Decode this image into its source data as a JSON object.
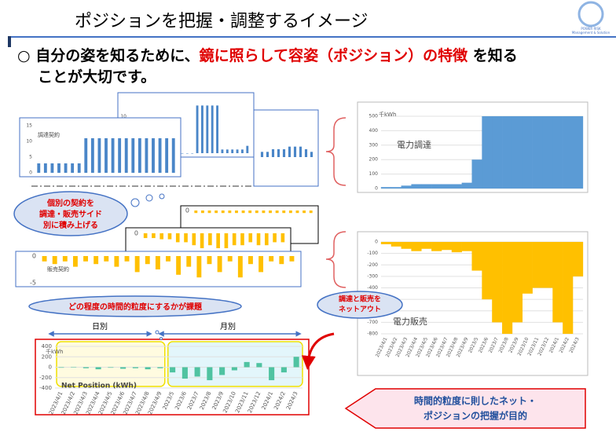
{
  "header": {
    "title": "ポジションを把握・調整するイメージ",
    "logo": [
      "POWER RISK",
      "Management & Solution"
    ]
  },
  "bullet": {
    "mark": "○",
    "text_1": "自分の姿を知るために、",
    "highlight": "鏡に照らして容姿（ポジション）の特徴",
    "text_2": " を知る",
    "text_3": "ことが大切です。"
  },
  "callouts": {
    "stack": [
      "個別の契約を",
      "調達・販売サイド",
      "別に積み上げる"
    ],
    "granularity": "どの程度の時間的粒度にするかが課題",
    "netout": [
      "調達と販売を",
      "ネットアウト"
    ],
    "goal": [
      "時間的粒度に則したネット・",
      "ポジションの把握が目的"
    ]
  },
  "periods": {
    "daily": "日別",
    "monthly": "月別"
  },
  "chart_data": [
    {
      "type": "bar",
      "label": "調達契約",
      "color": "#4a86c8",
      "ylim": [
        0,
        15
      ],
      "yticks": [
        0,
        5,
        10,
        15
      ],
      "values": [
        3,
        3,
        3,
        3,
        3,
        3,
        3,
        11,
        11,
        11,
        11,
        11,
        11,
        11,
        11,
        11,
        11,
        11,
        11,
        11,
        11
      ]
    },
    {
      "type": "bar",
      "color": "#4a86c8",
      "ylim": [
        0,
        15
      ],
      "yticks": [
        10
      ],
      "values": [
        0,
        0,
        0,
        0,
        0,
        0,
        0,
        0,
        0,
        0,
        0,
        0,
        0,
        13,
        13,
        13,
        13,
        13,
        1,
        1,
        1,
        1,
        1,
        2
      ]
    },
    {
      "type": "bar",
      "color": "#4a86c8",
      "ylim": [
        0,
        15
      ],
      "values": [
        2,
        2,
        3,
        3,
        3,
        4,
        4,
        4,
        3,
        2
      ]
    },
    {
      "type": "bar",
      "color": "#ffc000",
      "ylim": [
        -5,
        0
      ],
      "yticks": [
        0
      ],
      "values": [
        -0.5,
        -0.5,
        -0.5,
        -0.5,
        -0.5,
        -0.5,
        -0.5,
        -0.5,
        -0.5,
        -0.5,
        -0.5,
        -0.5,
        -0.5,
        -0.5,
        -0.5,
        -0.5,
        -0.5,
        -0.5
      ]
    },
    {
      "type": "bar",
      "color": "#ffc000",
      "ylim": [
        -5,
        0
      ],
      "yticks": [
        0
      ],
      "values": [
        -0.8,
        -0.8,
        -1,
        -1,
        -1.5,
        -1.5,
        -2,
        -2.5,
        -2,
        -2.5,
        -2.5,
        -2,
        -2,
        -1.5,
        -2,
        -2,
        -1.5,
        -1.5
      ]
    },
    {
      "type": "bar",
      "label": "販売契約",
      "color": "#ffc000",
      "ylim": [
        -5,
        0
      ],
      "yticks": [
        0,
        -5
      ],
      "values": [
        -1,
        -1.5,
        -1,
        -2,
        -1,
        -1.5,
        -1,
        -2,
        -1,
        -3,
        -1.5,
        -2.5,
        -1,
        -3.5,
        -2,
        -4,
        -1.5,
        -3,
        -1,
        -4,
        -1.5,
        -3,
        -1,
        -1.5,
        -1
      ]
    },
    {
      "type": "step",
      "label": "電力調達",
      "unit": "千kWh",
      "color": "#5b9bd5",
      "grid": true,
      "ylim": [
        0,
        500
      ],
      "yticks": [
        0,
        100,
        200,
        300,
        400,
        500
      ],
      "values": [
        10,
        10,
        20,
        30,
        30,
        30,
        30,
        30,
        40,
        200,
        500,
        500,
        500,
        500,
        500,
        500,
        500,
        500,
        500,
        500
      ]
    },
    {
      "type": "step",
      "label": "電力販売",
      "color": "#ffc000",
      "grid": true,
      "ylim": [
        -800,
        0
      ],
      "yticks": [
        0,
        -100,
        -200,
        -300,
        -400,
        -500,
        -600,
        -700,
        -800
      ],
      "categories": [
        "2023/4/1",
        "2023/4/2",
        "2023/4/3",
        "2023/4/4",
        "2023/4/5",
        "2023/4/6",
        "2023/4/7",
        "2023/4/8",
        "2023/4/9",
        "2023/5",
        "2023/6",
        "2023/7",
        "2023/8",
        "2023/9",
        "2023/10",
        "2023/11",
        "2023/12",
        "2024/1",
        "2024/2",
        "2024/3"
      ],
      "values": [
        -20,
        -40,
        -60,
        -80,
        -60,
        -80,
        -70,
        -90,
        -80,
        -250,
        -500,
        -700,
        -800,
        -700,
        -450,
        -400,
        -400,
        -700,
        -800,
        -300
      ]
    },
    {
      "type": "bar",
      "label": "Net Position (kWh)",
      "unit": "千kWh",
      "color": "#4fc3a1",
      "grid": true,
      "ylim": [
        -400,
        400
      ],
      "yticks": [
        -400,
        -200,
        0,
        200,
        400
      ],
      "categories": [
        "2023/4/1",
        "2023/4/2",
        "2023/4/3",
        "2023/4/4",
        "2023/4/5",
        "2023/4/6",
        "2023/4/7",
        "2023/4/8",
        "2023/4/9",
        "2023/5",
        "2023/6",
        "2023/7",
        "2023/8",
        "2023/9",
        "2023/10",
        "2023/11",
        "2023/12",
        "2024/1",
        "2024/2",
        "2024/3"
      ],
      "values": [
        -10,
        -5,
        -20,
        -40,
        -10,
        -30,
        -20,
        -40,
        -20,
        -100,
        -220,
        -180,
        -250,
        -150,
        -60,
        100,
        80,
        -250,
        -100,
        200
      ]
    }
  ]
}
